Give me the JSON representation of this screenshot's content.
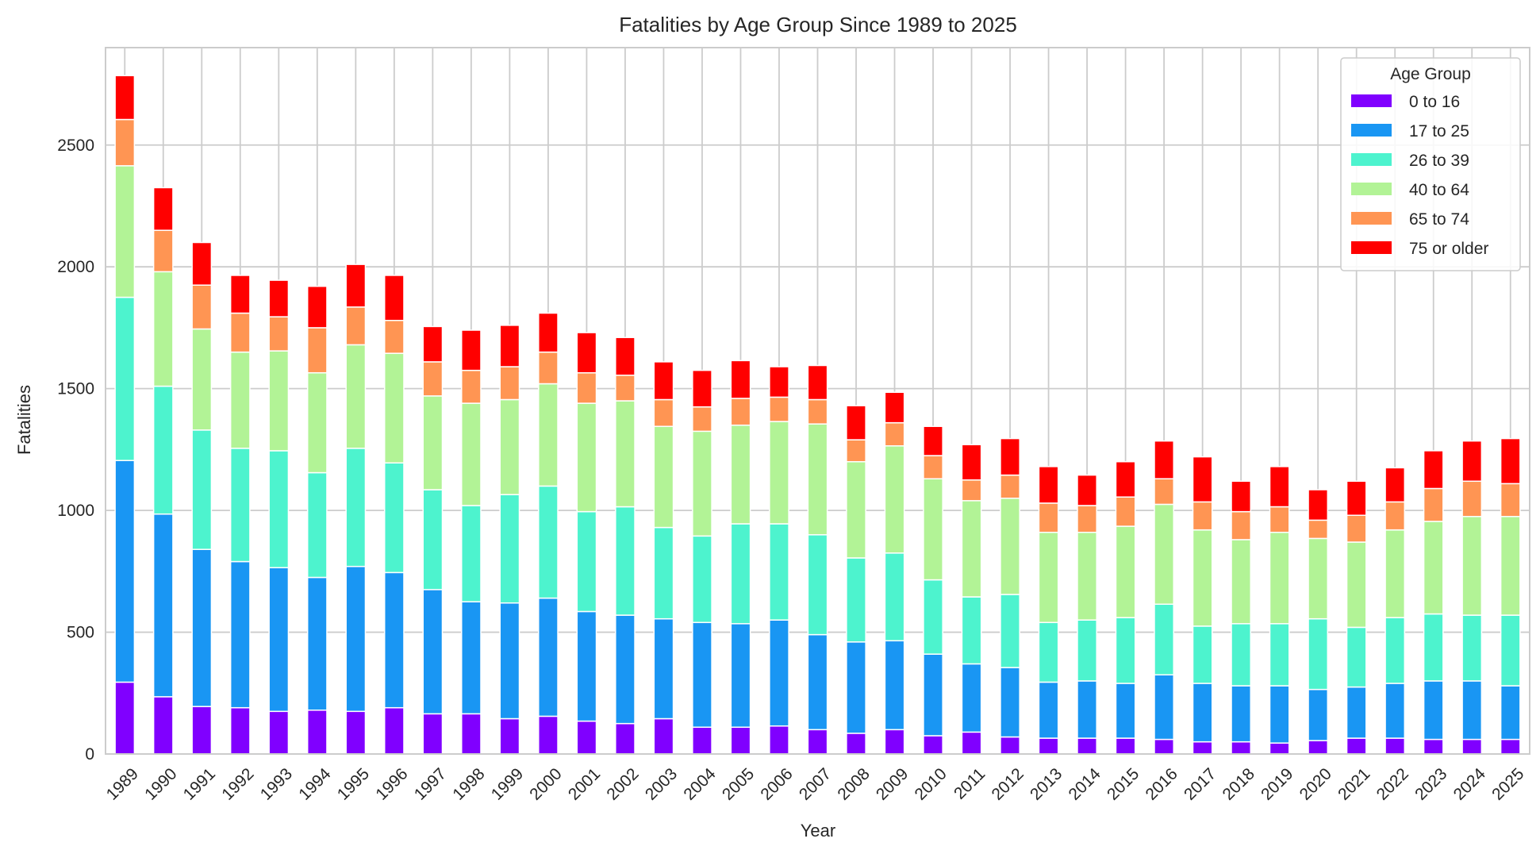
{
  "chart_data": {
    "type": "bar",
    "stacked": true,
    "title": "Fatalities by Age Group Since 1989 to 2025",
    "xlabel": "Year",
    "ylabel": "Fatalities",
    "ylim": [
      0,
      2900
    ],
    "yticks": [
      0,
      500,
      1000,
      1500,
      2000,
      2500
    ],
    "grid": true,
    "legend": {
      "title": "Age Group",
      "placement": "top-right"
    },
    "categories": [
      "1989",
      "1990",
      "1991",
      "1992",
      "1993",
      "1994",
      "1995",
      "1996",
      "1997",
      "1998",
      "1999",
      "2000",
      "2001",
      "2002",
      "2003",
      "2004",
      "2005",
      "2006",
      "2007",
      "2008",
      "2009",
      "2010",
      "2011",
      "2012",
      "2013",
      "2014",
      "2015",
      "2016",
      "2017",
      "2018",
      "2019",
      "2020",
      "2021",
      "2022",
      "2023",
      "2024",
      "2025"
    ],
    "series": [
      {
        "name": "0 to 16",
        "color": "#8000ff",
        "values": [
          295,
          235,
          195,
          190,
          175,
          180,
          175,
          190,
          165,
          165,
          145,
          155,
          135,
          125,
          145,
          110,
          110,
          115,
          100,
          85,
          100,
          75,
          90,
          70,
          65,
          65,
          65,
          60,
          50,
          50,
          45,
          55,
          65,
          65,
          60,
          60,
          60
        ]
      },
      {
        "name": "17 to 25",
        "color": "#1996f3",
        "values": [
          910,
          750,
          645,
          600,
          590,
          545,
          595,
          555,
          510,
          460,
          475,
          485,
          450,
          445,
          410,
          430,
          425,
          435,
          390,
          375,
          365,
          335,
          280,
          285,
          230,
          235,
          225,
          265,
          240,
          230,
          235,
          210,
          210,
          225,
          240,
          240,
          220
        ]
      },
      {
        "name": "26 to 39",
        "color": "#4df3ce",
        "values": [
          670,
          525,
          490,
          465,
          480,
          430,
          485,
          450,
          410,
          395,
          445,
          460,
          410,
          445,
          375,
          355,
          410,
          395,
          410,
          345,
          360,
          305,
          275,
          300,
          245,
          250,
          270,
          290,
          235,
          255,
          255,
          290,
          245,
          270,
          275,
          270,
          290
        ]
      },
      {
        "name": "40 to 64",
        "color": "#b2f396",
        "values": [
          540,
          470,
          415,
          395,
          410,
          410,
          425,
          450,
          385,
          420,
          390,
          420,
          445,
          435,
          415,
          430,
          405,
          420,
          455,
          395,
          440,
          415,
          395,
          395,
          370,
          360,
          375,
          410,
          395,
          345,
          375,
          330,
          350,
          360,
          380,
          405,
          405
        ]
      },
      {
        "name": "65 to 74",
        "color": "#ff9553",
        "values": [
          190,
          170,
          180,
          160,
          140,
          185,
          155,
          135,
          140,
          135,
          135,
          130,
          125,
          105,
          110,
          100,
          110,
          100,
          100,
          90,
          95,
          95,
          85,
          95,
          120,
          110,
          120,
          105,
          115,
          115,
          105,
          75,
          110,
          115,
          135,
          145,
          135
        ]
      },
      {
        "name": "75 or older",
        "color": "#ff0000",
        "values": [
          180,
          175,
          175,
          155,
          150,
          170,
          175,
          185,
          145,
          165,
          170,
          160,
          165,
          155,
          155,
          150,
          155,
          125,
          140,
          140,
          125,
          120,
          145,
          150,
          150,
          125,
          145,
          155,
          185,
          125,
          165,
          125,
          140,
          140,
          155,
          165,
          185
        ]
      }
    ]
  }
}
